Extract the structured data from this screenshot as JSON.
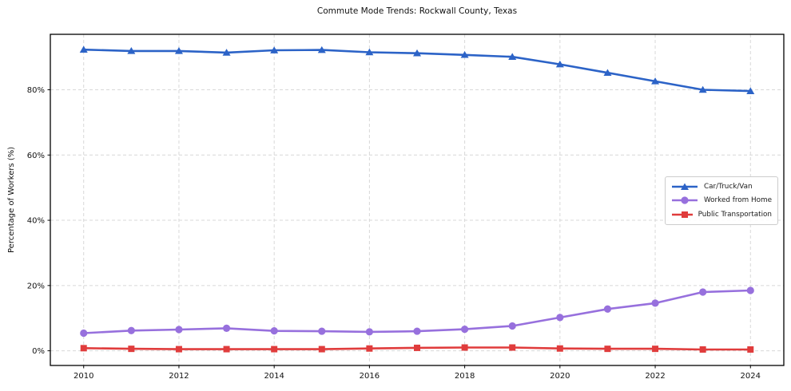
{
  "chart_data": {
    "type": "line",
    "title": "Commute Mode Trends: Rockwall County, Texas",
    "ylabel": "Percentage of Workers (%)",
    "xlabel": "",
    "x": [
      2010,
      2011,
      2012,
      2013,
      2014,
      2015,
      2016,
      2017,
      2018,
      2019,
      2020,
      2021,
      2022,
      2023,
      2024
    ],
    "xticks": [
      2010,
      2012,
      2014,
      2016,
      2018,
      2020,
      2022,
      2024
    ],
    "yticks": [
      0,
      20,
      40,
      60,
      80
    ],
    "ytick_labels": [
      "0%",
      "20%",
      "40%",
      "60%",
      "80%"
    ],
    "xlim": [
      2009.3,
      2024.7
    ],
    "ylim": [
      -4.5,
      97
    ],
    "grid": "dashed, both axes, light gray",
    "legend_position": "center right",
    "series": [
      {
        "name": "Car/Truck/Van",
        "color": "#2c63c7",
        "marker": "triangle",
        "values": [
          92.3,
          91.9,
          91.9,
          91.4,
          92.1,
          92.2,
          91.5,
          91.2,
          90.7,
          90.1,
          87.8,
          85.2,
          82.6,
          80.0,
          79.6
        ]
      },
      {
        "name": "Worked from Home",
        "color": "#9770dd",
        "marker": "circle",
        "values": [
          5.4,
          6.2,
          6.5,
          6.9,
          6.1,
          6.0,
          5.8,
          6.0,
          6.6,
          7.6,
          10.2,
          12.8,
          14.6,
          18.0,
          18.5
        ]
      },
      {
        "name": "Public Transportation",
        "color": "#e03c3c",
        "marker": "square",
        "values": [
          0.8,
          0.6,
          0.5,
          0.5,
          0.5,
          0.5,
          0.7,
          0.9,
          1.0,
          1.0,
          0.7,
          0.6,
          0.6,
          0.4,
          0.4
        ]
      }
    ],
    "style": {
      "grid_color": "#d8d8d8",
      "frame_color": "#000000",
      "tick_label_color": "#111111"
    }
  }
}
